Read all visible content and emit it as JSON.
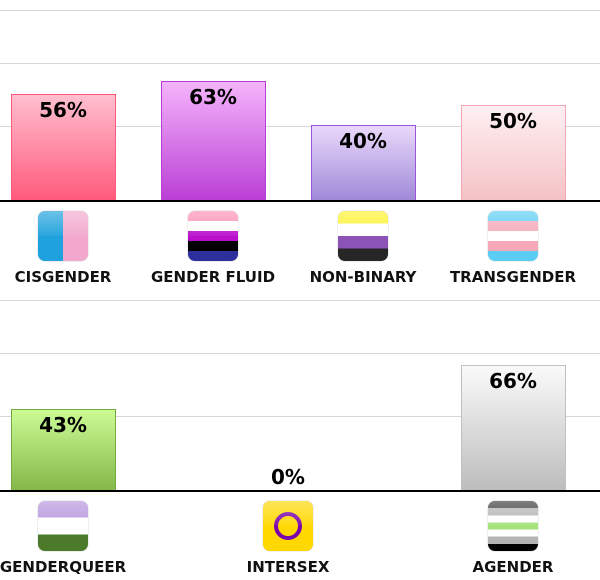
{
  "chart_data": [
    {
      "type": "bar",
      "ylim": [
        0,
        100
      ],
      "grid": true,
      "categories": [
        "CISGENDER",
        "GENDER FLUID",
        "NON-BINARY",
        "TRANSGENDER"
      ],
      "values": [
        56,
        63,
        40,
        50
      ],
      "data_labels": [
        "56%",
        "63%",
        "40%",
        "50%"
      ],
      "bar_colors": [
        {
          "top": "#ffbfcf",
          "bottom": "#ff5a7c",
          "border": "#ff5a7c"
        },
        {
          "top": "#f4b4fb",
          "bottom": "#bb3fd6",
          "border": "#b53fd6"
        },
        {
          "top": "#ead8fb",
          "bottom": "#a08ad8",
          "border": "#9a55d8"
        },
        {
          "top": "#fdf0f2",
          "bottom": "#f5c2c6",
          "border": "#f5a6b4"
        }
      ],
      "icons": [
        {
          "name": "cisgender-flag-icon",
          "type": "vertical",
          "stripes": [
            "#1ea1dc",
            "#f2a8cc"
          ]
        },
        {
          "name": "gender-fluid-flag-icon",
          "type": "horizontal",
          "stripes": [
            "#ff8fb8",
            "#ffffff",
            "#b90fcc",
            "#000000",
            "#2d2f9c"
          ]
        },
        {
          "name": "non-binary-flag-icon",
          "type": "horizontal",
          "stripes": [
            "#fcf22d",
            "#ffffff",
            "#8a53b5",
            "#262626"
          ]
        },
        {
          "name": "transgender-flag-icon",
          "type": "horizontal",
          "stripes": [
            "#5bcdf5",
            "#f5a9b8",
            "#ffffff",
            "#f5a9b8",
            "#5bcdf5"
          ]
        }
      ]
    },
    {
      "type": "bar",
      "ylim": [
        0,
        100
      ],
      "grid": true,
      "categories": [
        "GENDERQUEER",
        "INTERSEX",
        "AGENDER"
      ],
      "values": [
        43,
        0,
        66
      ],
      "data_labels": [
        "43%",
        "0%",
        "66%"
      ],
      "bar_colors": [
        {
          "top": "#ccfb94",
          "bottom": "#84b84a",
          "border": "#75a83e"
        },
        {
          "top": "#ffd800",
          "bottom": "#ffd800",
          "border": "#ffd800"
        },
        {
          "top": "#fafafa",
          "bottom": "#bdbdbd",
          "border": "#c0c0c0"
        }
      ],
      "icons": [
        {
          "name": "genderqueer-flag-icon",
          "type": "horizontal",
          "stripes": [
            "#b596de",
            "#ffffff",
            "#4b7a2a"
          ]
        },
        {
          "name": "intersex-flag-icon",
          "type": "intersex",
          "stripes": [
            "#ffd800",
            "#7902aa"
          ]
        },
        {
          "name": "agender-flag-icon",
          "type": "horizontal",
          "stripes": [
            "#3a3a3a",
            "#b4b4b4",
            "#ffffff",
            "#a4e27a",
            "#ffffff",
            "#b4b4b4",
            "#000000"
          ]
        }
      ]
    }
  ]
}
